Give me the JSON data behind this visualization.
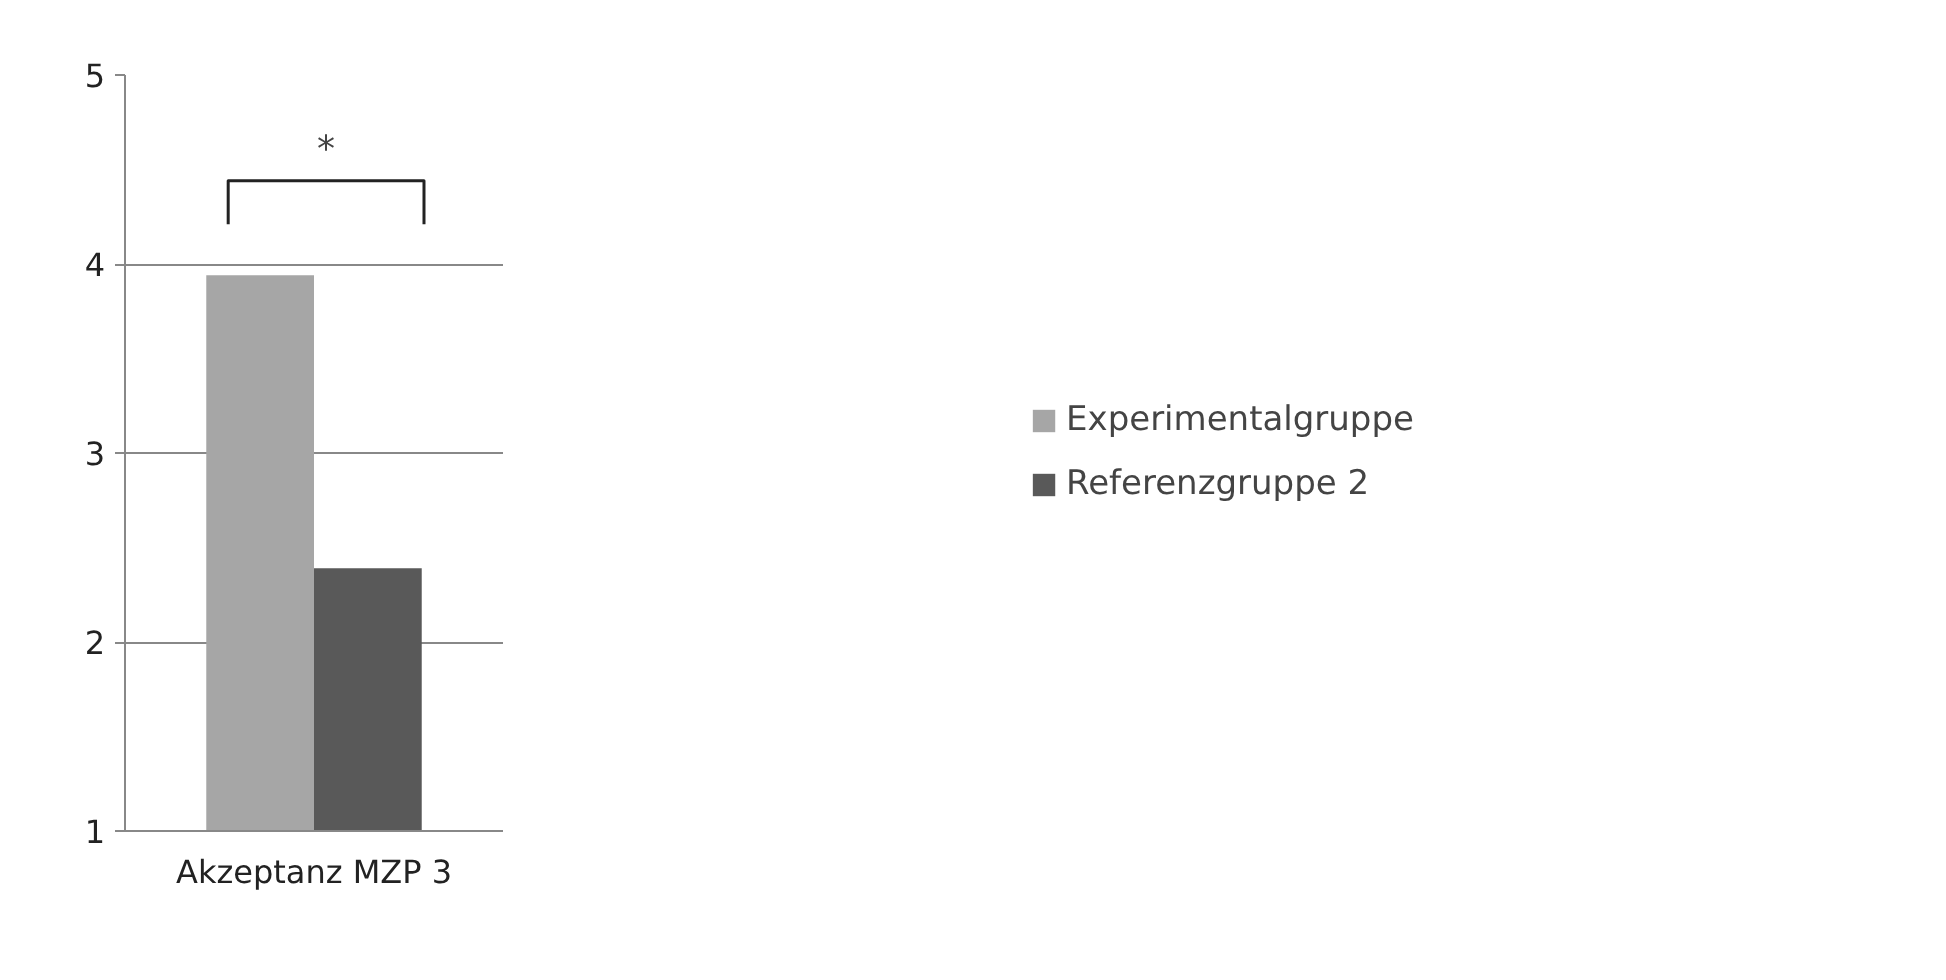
{
  "chart_data": {
    "type": "bar",
    "categories": [
      "Akzeptanz MZP 3"
    ],
    "series": [
      {
        "name": "Experimentalgruppe",
        "color": "#a6a6a6",
        "values": [
          3.94
        ]
      },
      {
        "name": "Referenzgruppe 2",
        "color": "#595959",
        "values": [
          2.39
        ]
      }
    ],
    "ylim": [
      1,
      5
    ],
    "yticks": [
      1,
      2,
      3,
      4,
      5
    ],
    "grid": "y",
    "legend": "right",
    "annotations": [
      "*"
    ]
  }
}
